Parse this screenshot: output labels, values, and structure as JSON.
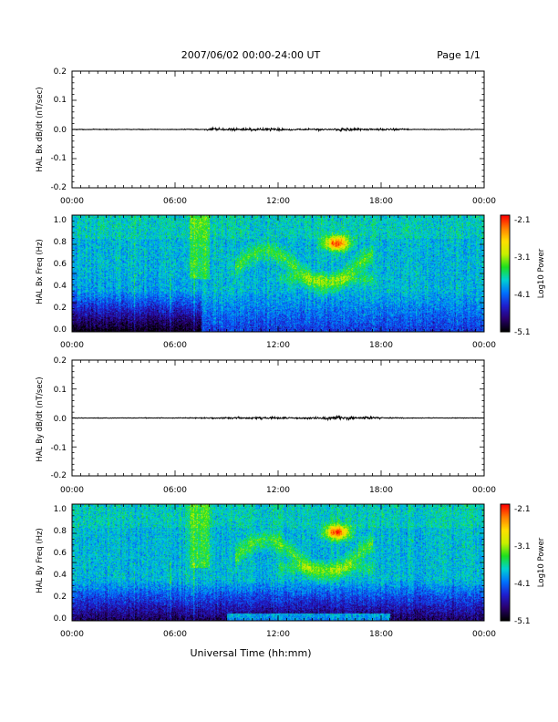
{
  "header": {
    "title": "2007/06/02  00:00-24:00 UT",
    "page": "Page 1/1"
  },
  "colors": {
    "trace": "#000000",
    "colormap": [
      "#000000",
      "#2a0070",
      "#1f1fd0",
      "#0073ff",
      "#00d2d2",
      "#1ee01e",
      "#c8f000",
      "#ffe000",
      "#ff8000",
      "#ff0000"
    ]
  },
  "x_axis_label": "Universal Time (hh:mm)",
  "chart_data": [
    {
      "type": "line",
      "ylabel": "HAL Bx dB/dt (nT/sec)",
      "xlim": [
        "00:00",
        "24:00"
      ],
      "ylim": [
        -0.2,
        0.2
      ],
      "ytick_labels": [
        "0.2",
        "0.1",
        "0.0",
        "-0.1",
        "-0.2"
      ],
      "xtick_labels": [
        "00:00",
        "06:00",
        "12:00",
        "18:00",
        "00:00"
      ],
      "series_description": "dB/dt trace near 0.0 all day, small bursts of amplitude ~0.005 around 08:00-12:00 and 15:00-17:00",
      "amplitude_profile": {
        "hours": [
          0,
          6,
          7.5,
          8,
          10,
          12,
          13,
          15,
          16,
          17,
          19,
          20,
          24
        ],
        "amplitude": [
          0.001,
          0.001,
          0.002,
          0.004,
          0.005,
          0.005,
          0.002,
          0.004,
          0.006,
          0.003,
          0.003,
          0.001,
          0.001
        ]
      }
    },
    {
      "type": "heatmap",
      "ylabel": "HAL Bx Freq (Hz)",
      "xlim": [
        "00:00",
        "24:00"
      ],
      "ylim": [
        0.0,
        1.0
      ],
      "ytick_labels": [
        "1.0",
        "0.8",
        "0.6",
        "0.4",
        "0.2",
        "0.0"
      ],
      "xtick_labels": [
        "00:00",
        "06:00",
        "12:00",
        "18:00",
        "00:00"
      ],
      "colorbar": {
        "label": "Log10 Power",
        "range": [
          -5.1,
          -2.1
        ],
        "tick_labels": [
          "-2.1",
          "-3.1",
          "-4.1",
          "-5.1"
        ]
      },
      "features": "Power mostly -4.1 to -3.6 (blue/cyan); low power near 0.0-0.4 Hz before 07:30; enhanced emission 0.4-0.85 Hz from 10:00 to 17:00 with peak about -2.3 near 15:30 at 0.75 Hz"
    },
    {
      "type": "line",
      "ylabel": "HAL By dB/dt (nT/sec)",
      "xlim": [
        "00:00",
        "24:00"
      ],
      "ylim": [
        -0.2,
        0.2
      ],
      "ytick_labels": [
        "0.2",
        "0.1",
        "0.0",
        "-0.1",
        "-0.2"
      ],
      "xtick_labels": [
        "00:00",
        "06:00",
        "12:00",
        "18:00",
        "00:00"
      ],
      "series_description": "dB/dt trace near 0.0 all day, largest bursts ~0.008 around 16:00",
      "amplitude_profile": {
        "hours": [
          0,
          6,
          8,
          10,
          12,
          14,
          15.5,
          16,
          16.5,
          18,
          20,
          24
        ],
        "amplitude": [
          0.001,
          0.001,
          0.002,
          0.003,
          0.004,
          0.003,
          0.006,
          0.008,
          0.004,
          0.003,
          0.001,
          0.001
        ]
      }
    },
    {
      "type": "heatmap",
      "ylabel": "HAL By Freq (Hz)",
      "xlim": [
        "00:00",
        "24:00"
      ],
      "ylim": [
        0.0,
        1.0
      ],
      "ytick_labels": [
        "1.0",
        "0.8",
        "0.6",
        "0.4",
        "0.2",
        "0.0"
      ],
      "xtick_labels": [
        "00:00",
        "06:00",
        "12:00",
        "18:00",
        "00:00"
      ],
      "colorbar": {
        "label": "Log10 Power",
        "range": [
          -5.1,
          -2.1
        ],
        "tick_labels": [
          "-2.1",
          "-3.1",
          "-4.1",
          "-5.1"
        ]
      },
      "features": "Low power (dark blue/purple) below 0.25 Hz all day; enhanced emission 0.4-0.85 Hz from 10:00 to 17:00 with peak about -2.2 near 15:30 at 0.78 Hz; cyan/green band near 0.0 Hz around 09:00-18:00"
    }
  ]
}
